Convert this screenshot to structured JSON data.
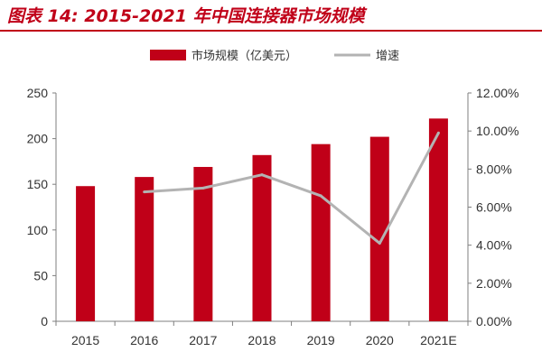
{
  "title": "图表 14: 2015-2021 年中国连接器市场规模",
  "colors": {
    "title": "#c00018",
    "bar": "#c00018",
    "line": "#b3b3b3",
    "axis": "#7f7f7f"
  },
  "chart_data": {
    "type": "bar",
    "categories": [
      "2015",
      "2016",
      "2017",
      "2018",
      "2019",
      "2020",
      "2021E"
    ],
    "series": [
      {
        "name": "市场规模（亿美元）",
        "type": "bar",
        "axis": "left",
        "values": [
          148,
          158,
          169,
          182,
          194,
          202,
          222
        ]
      },
      {
        "name": "增速",
        "type": "line",
        "axis": "right",
        "values": [
          null,
          6.8,
          7.0,
          7.7,
          6.6,
          4.1,
          9.9
        ]
      }
    ],
    "y_left": {
      "ylim": [
        0,
        250
      ],
      "ticks": [
        "0",
        "50",
        "100",
        "150",
        "200",
        "250"
      ]
    },
    "y_right": {
      "ylim": [
        0,
        12
      ],
      "ticks": [
        "0.00%",
        "2.00%",
        "4.00%",
        "6.00%",
        "8.00%",
        "10.00%",
        "12.00%"
      ]
    },
    "legend": {
      "position": "top"
    },
    "grid": false
  }
}
